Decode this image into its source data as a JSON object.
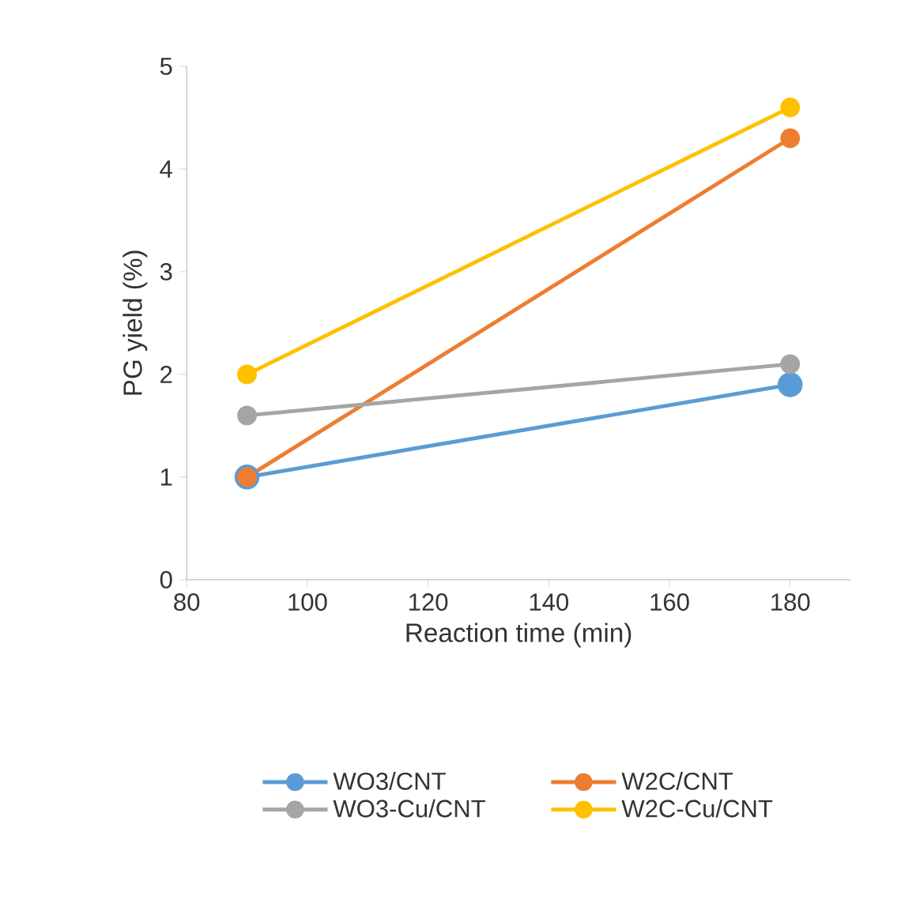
{
  "chart_data": {
    "type": "line",
    "xlabel": "Reaction time (min)",
    "ylabel": "PG yield (%)",
    "x": [
      90,
      180
    ],
    "xlim": [
      80,
      190
    ],
    "xticks": [
      80,
      100,
      120,
      140,
      160,
      180
    ],
    "ylim": [
      0,
      5
    ],
    "yticks": [
      0,
      1,
      2,
      3,
      4,
      5
    ],
    "grid": false,
    "legend": "bottom",
    "marker": "circle",
    "line_style": "solid",
    "series": [
      {
        "name": "WO3/CNT",
        "color": "#5b9bd5",
        "values": [
          1.0,
          1.9
        ]
      },
      {
        "name": "W2C/CNT",
        "color": "#ed7d31",
        "values": [
          1.0,
          4.3
        ]
      },
      {
        "name": "WO3-Cu/CNT",
        "color": "#a5a5a5",
        "values": [
          1.6,
          2.1
        ]
      },
      {
        "name": "W2C-Cu/CNT",
        "color": "#ffc000",
        "values": [
          2.0,
          4.6
        ]
      }
    ]
  }
}
